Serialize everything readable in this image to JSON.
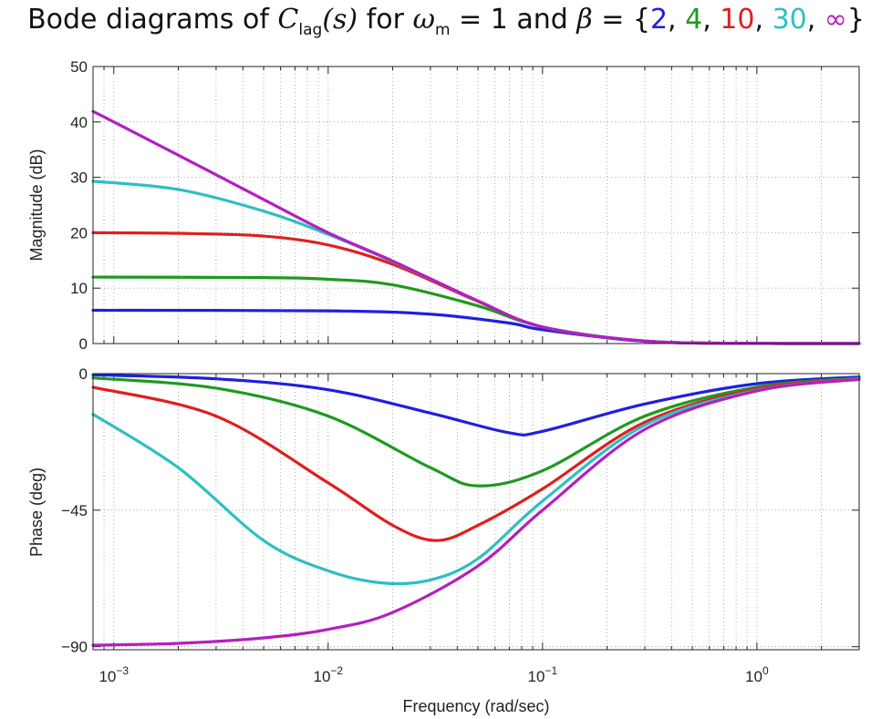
{
  "title": {
    "prefix": "Bode diagrams of ",
    "func_symbol": "C",
    "func_subscript": "lag",
    "func_arg": "(s)",
    "for_text": " for ",
    "omega_symbol": "ω",
    "omega_subscript": "m",
    "omega_equals": " = 1 and ",
    "beta_symbol": "β",
    "beta_equals": " = {",
    "comma": ", ",
    "close": "}"
  },
  "legend_values": [
    {
      "label": "2",
      "color": "#1f1fe0"
    },
    {
      "label": "4",
      "color": "#1e9a1e"
    },
    {
      "label": "10",
      "color": "#e01e1e"
    },
    {
      "label": "30",
      "color": "#2ebfc2"
    },
    {
      "label": "∞",
      "color": "#b31fc0"
    }
  ],
  "chart_data": {
    "type": "line",
    "x_scale": "log",
    "xlabel": "Frequency (rad/sec)",
    "xlim": [
      0.0008,
      3.0
    ],
    "x_ticks": [
      {
        "value": 0.001,
        "label": "10−3"
      },
      {
        "value": 0.01,
        "label": "10−2"
      },
      {
        "value": 0.1,
        "label": "10−1"
      },
      {
        "value": 1,
        "label": "100"
      }
    ],
    "grid": "dotted",
    "omega_m": 1,
    "magnitude": {
      "ylabel": "Magnitude (dB)",
      "ylim": [
        0,
        50
      ],
      "y_ticks": [
        0,
        10,
        20,
        30,
        40,
        50
      ],
      "series": [
        {
          "beta": "2",
          "color": "#1f1fe0",
          "points": [
            [
              0.0008,
              6.0
            ],
            [
              0.01,
              5.9
            ],
            [
              0.03,
              5.3
            ],
            [
              0.07,
              3.7
            ],
            [
              0.1,
              2.5
            ],
            [
              0.3,
              0.4
            ],
            [
              1,
              0.04
            ],
            [
              3,
              0.0
            ]
          ]
        },
        {
          "beta": "4",
          "color": "#1e9a1e",
          "points": [
            [
              0.0008,
              12.0
            ],
            [
              0.005,
              11.9
            ],
            [
              0.01,
              11.6
            ],
            [
              0.02,
              10.6
            ],
            [
              0.05,
              6.8
            ],
            [
              0.1,
              3.0
            ],
            [
              0.3,
              0.45
            ],
            [
              1,
              0.04
            ],
            [
              3,
              0.0
            ]
          ]
        },
        {
          "beta": "10",
          "color": "#e01e1e",
          "points": [
            [
              0.0008,
              20.0
            ],
            [
              0.002,
              19.9
            ],
            [
              0.005,
              19.4
            ],
            [
              0.01,
              17.8
            ],
            [
              0.02,
              14.3
            ],
            [
              0.05,
              7.6
            ],
            [
              0.1,
              3.0
            ],
            [
              0.3,
              0.45
            ],
            [
              1,
              0.04
            ],
            [
              3,
              0.0
            ]
          ]
        },
        {
          "beta": "30",
          "color": "#2ebfc2",
          "points": [
            [
              0.0008,
              29.3
            ],
            [
              0.002,
              27.8
            ],
            [
              0.005,
              23.9
            ],
            [
              0.01,
              19.7
            ],
            [
              0.02,
              14.8
            ],
            [
              0.05,
              7.7
            ],
            [
              0.1,
              3.0
            ],
            [
              0.3,
              0.45
            ],
            [
              1,
              0.04
            ],
            [
              3,
              0.0
            ]
          ]
        },
        {
          "beta": "∞",
          "color": "#b31fc0",
          "points": [
            [
              0.0008,
              41.9
            ],
            [
              0.001,
              40.0
            ],
            [
              0.002,
              34.0
            ],
            [
              0.005,
              26.0
            ],
            [
              0.01,
              20.0
            ],
            [
              0.02,
              14.9
            ],
            [
              0.05,
              7.7
            ],
            [
              0.1,
              3.0
            ],
            [
              0.3,
              0.45
            ],
            [
              1,
              0.04
            ],
            [
              3,
              0.0
            ]
          ]
        }
      ]
    },
    "phase": {
      "ylabel": "Phase (deg)",
      "ylim": [
        -91,
        0
      ],
      "y_ticks": [
        0,
        -45,
        -90
      ],
      "series": [
        {
          "beta": "2",
          "color": "#1f1fe0",
          "points": [
            [
              0.0008,
              -0.4
            ],
            [
              0.003,
              -1.7
            ],
            [
              0.01,
              -5.3
            ],
            [
              0.03,
              -13.0
            ],
            [
              0.07,
              -19.5
            ],
            [
              0.1,
              -19.0
            ],
            [
              0.3,
              -10.0
            ],
            [
              1,
              -3.3
            ],
            [
              3,
              -1.1
            ]
          ]
        },
        {
          "beta": "4",
          "color": "#1e9a1e",
          "points": [
            [
              0.0008,
              -1.4
            ],
            [
              0.003,
              -4.8
            ],
            [
              0.01,
              -14.0
            ],
            [
              0.03,
              -31.0
            ],
            [
              0.05,
              -37.0
            ],
            [
              0.1,
              -32.0
            ],
            [
              0.3,
              -14.0
            ],
            [
              1,
              -4.4
            ],
            [
              3,
              -1.5
            ]
          ]
        },
        {
          "beta": "10",
          "color": "#e01e1e",
          "points": [
            [
              0.0008,
              -4.5
            ],
            [
              0.003,
              -14.0
            ],
            [
              0.01,
              -36.0
            ],
            [
              0.02,
              -50.0
            ],
            [
              0.032,
              -55.0
            ],
            [
              0.05,
              -50.0
            ],
            [
              0.1,
              -38.0
            ],
            [
              0.3,
              -16.0
            ],
            [
              1,
              -5.0
            ],
            [
              3,
              -1.7
            ]
          ]
        },
        {
          "beta": "30",
          "color": "#2ebfc2",
          "points": [
            [
              0.0008,
              -13.4
            ],
            [
              0.002,
              -31.0
            ],
            [
              0.005,
              -55.0
            ],
            [
              0.01,
              -65.0
            ],
            [
              0.018,
              -69.0
            ],
            [
              0.03,
              -68.0
            ],
            [
              0.05,
              -61.0
            ],
            [
              0.1,
              -42.0
            ],
            [
              0.3,
              -17.0
            ],
            [
              1,
              -5.5
            ],
            [
              3,
              -1.8
            ]
          ]
        },
        {
          "beta": "∞",
          "color": "#b31fc0",
          "points": [
            [
              0.0008,
              -89.5
            ],
            [
              0.002,
              -88.9
            ],
            [
              0.005,
              -87.1
            ],
            [
              0.01,
              -84.3
            ],
            [
              0.02,
              -78.7
            ],
            [
              0.05,
              -63.4
            ],
            [
              0.1,
              -45.0
            ],
            [
              0.3,
              -18.4
            ],
            [
              1,
              -5.7
            ],
            [
              3,
              -1.9
            ]
          ]
        }
      ]
    }
  }
}
